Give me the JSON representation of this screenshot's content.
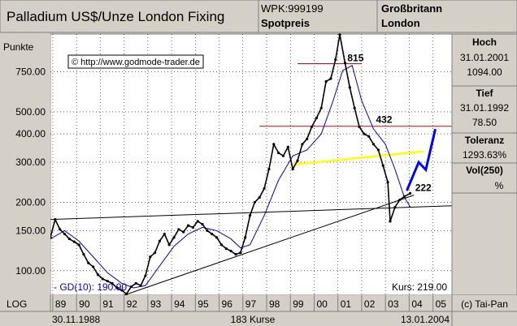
{
  "header": {
    "title": "Palladium US$/Unze London Fixing",
    "wpk": "WPK:999199",
    "subtitle": "Spotpreis",
    "region": "Großbritann",
    "city": "London"
  },
  "side_panel": {
    "high_label": "Hoch",
    "high_date": "31.01.2001",
    "high_value": "1094.00",
    "low_label": "Tief",
    "low_date": "31.01.1992",
    "low_value": "78.50",
    "tolerance_label": "Toleranz",
    "tolerance_value": "1293.63%",
    "vol_label": "Vol(250)",
    "vol_value": "%"
  },
  "footer": {
    "scale_mode": "LOG",
    "start_date": "30.11.1988",
    "count": "183 Kurse",
    "end_date": "13.01.2004",
    "copyright": "(c) Tai-Pan"
  },
  "colors": {
    "price": "#000000",
    "moving_average": "#0000cc",
    "resistance": "#dd0000",
    "channel": "#ffff00",
    "projection": "#0000ff",
    "trendline": "#000000"
  },
  "chart_data": {
    "type": "line",
    "title": "Palladium US$/Unze London Fixing",
    "ylabel": "Punkte",
    "yscale": "log",
    "ylim": [
      78,
      1100
    ],
    "xlim": [
      1988.9,
      2005.8
    ],
    "x_ticks": [
      "89",
      "90",
      "91",
      "92",
      "93",
      "94",
      "95",
      "96",
      "97",
      "98",
      "99",
      "00",
      "01",
      "02",
      "03",
      "04",
      "05"
    ],
    "y_ticks": [
      "750.00",
      "500.00",
      "400.00",
      "300.00",
      "200.00",
      "150.00",
      "100.00"
    ],
    "y_tick_values": [
      750,
      500,
      400,
      300,
      200,
      150,
      100
    ],
    "source_label": "© http://www.godmode-trader.de",
    "last_price_label": "Kurs: 219.00",
    "series": [
      {
        "name": "Kurs",
        "x": [
          1988.9,
          1989.1,
          1989.3,
          1989.5,
          1989.7,
          1989.9,
          1990.1,
          1990.3,
          1990.5,
          1990.7,
          1990.9,
          1991.1,
          1991.3,
          1991.5,
          1991.7,
          1991.9,
          1992.1,
          1992.3,
          1992.5,
          1992.7,
          1992.9,
          1993.1,
          1993.3,
          1993.5,
          1993.7,
          1993.9,
          1994.1,
          1994.3,
          1994.5,
          1994.7,
          1994.9,
          1995.1,
          1995.3,
          1995.5,
          1995.7,
          1995.9,
          1996.1,
          1996.3,
          1996.5,
          1996.7,
          1996.9,
          1997.1,
          1997.3,
          1997.5,
          1997.7,
          1997.9,
          1998.1,
          1998.3,
          1998.5,
          1998.7,
          1998.9,
          1999.1,
          1999.3,
          1999.5,
          1999.7,
          1999.9,
          2000.1,
          2000.3,
          2000.5,
          2000.7,
          2000.9,
          2001.08,
          2001.3,
          2001.5,
          2001.7,
          2001.9,
          2002.1,
          2002.3,
          2002.5,
          2002.7,
          2002.9,
          2003.1,
          2003.2,
          2003.4,
          2003.6,
          2003.8,
          2004.04
        ],
        "values": [
          140,
          168,
          152,
          145,
          138,
          134,
          130,
          118,
          108,
          104,
          96,
          92,
          90,
          88,
          84,
          82,
          79,
          85,
          88,
          86,
          95,
          115,
          120,
          135,
          145,
          130,
          140,
          152,
          148,
          158,
          155,
          165,
          160,
          150,
          145,
          140,
          130,
          125,
          122,
          118,
          120,
          140,
          175,
          200,
          210,
          230,
          280,
          360,
          330,
          320,
          350,
          280,
          305,
          360,
          380,
          430,
          470,
          520,
          680,
          700,
          850,
          1094,
          820,
          640,
          520,
          430,
          400,
          390,
          360,
          340,
          290,
          245,
          165,
          190,
          205,
          212,
          219
        ]
      },
      {
        "name": "GD(10)",
        "label": "GD(10): 190.90",
        "x": [
          1988.9,
          1989.5,
          1990.1,
          1990.7,
          1991.3,
          1991.9,
          1992.4,
          1992.9,
          1993.5,
          1994.1,
          1994.7,
          1995.3,
          1995.9,
          1996.5,
          1996.9,
          1997.3,
          1997.9,
          1998.5,
          1999.1,
          1999.7,
          2000.3,
          2000.8,
          2001.2,
          2001.6,
          2002.0,
          2002.5,
          2003.0,
          2003.4,
          2003.8,
          2004.04
        ],
        "values": [
          138,
          150,
          135,
          115,
          98,
          88,
          84,
          86,
          105,
          128,
          145,
          155,
          150,
          138,
          126,
          130,
          175,
          250,
          320,
          340,
          400,
          560,
          760,
          800,
          560,
          420,
          360,
          280,
          210,
          191
        ]
      }
    ],
    "annotations": [
      {
        "label": "815",
        "y": 815,
        "x_range": [
          1999.3,
          2002.0
        ],
        "color": "#dd0000"
      },
      {
        "label": "432",
        "y": 432,
        "x_range": [
          1997.7,
          2005.8
        ],
        "color": "#dd0000"
      },
      {
        "label": "222",
        "y": 222
      }
    ],
    "lines": [
      {
        "name": "long-trendline",
        "points": [
          [
            1988.9,
            168
          ],
          [
            2005.8,
            193
          ]
        ],
        "color": "#000000"
      },
      {
        "name": "rising-support",
        "points": [
          [
            1992.0,
            78
          ],
          [
            2004.2,
            215
          ]
        ],
        "color": "#000000"
      },
      {
        "name": "yellow-channel",
        "points": [
          [
            1999.0,
            292
          ],
          [
            2004.6,
            335
          ]
        ],
        "color": "#ffff00"
      },
      {
        "name": "forecast-projection",
        "points": [
          [
            2003.9,
            225
          ],
          [
            2004.4,
            300
          ],
          [
            2004.7,
            278
          ],
          [
            2005.1,
            420
          ]
        ],
        "color": "#0000ff"
      }
    ]
  }
}
